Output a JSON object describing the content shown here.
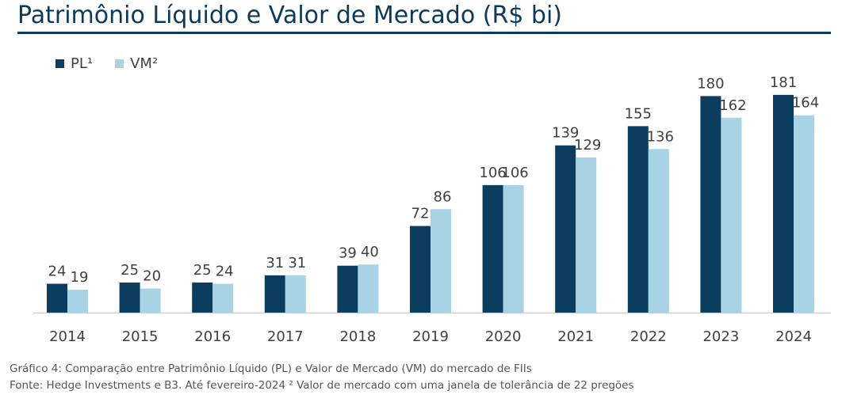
{
  "header": {
    "title": "Patrimônio Líquido e Valor de Mercado (R$ bi)"
  },
  "colors": {
    "title": "#0b3a5e",
    "pl": "#0b3d5e",
    "vm": "#a8d3e5",
    "axis": "#d0d0d0",
    "text": "#404040"
  },
  "legend": {
    "pl_label": "PL¹",
    "vm_label": "VM²",
    "placement": "top-left"
  },
  "chart_data": {
    "type": "bar",
    "title": "Patrimônio Líquido e Valor de Mercado (R$ bi)",
    "categories": [
      "2014",
      "2015",
      "2016",
      "2017",
      "2018",
      "2019",
      "2020",
      "2021",
      "2022",
      "2023",
      "2024"
    ],
    "series": [
      {
        "name": "PL¹",
        "values": [
          24,
          25,
          25,
          31,
          39,
          72,
          106,
          139,
          155,
          180,
          181
        ]
      },
      {
        "name": "VM²",
        "values": [
          19,
          20,
          24,
          31,
          40,
          86,
          106,
          129,
          136,
          162,
          164
        ]
      }
    ],
    "ylim": [
      0,
      200
    ],
    "grid": false,
    "legend_placement": "top-left",
    "data_labels": true
  },
  "captions": {
    "line1": "Gráfico 4: Comparação entre Patrimônio Líquido (PL) e Valor de Mercado (VM) do mercado de FIIs",
    "line2": "Fonte: Hedge Investments e B3. Até fevereiro-2024 ² Valor de mercado com uma janela de tolerância de 22 pregões"
  }
}
